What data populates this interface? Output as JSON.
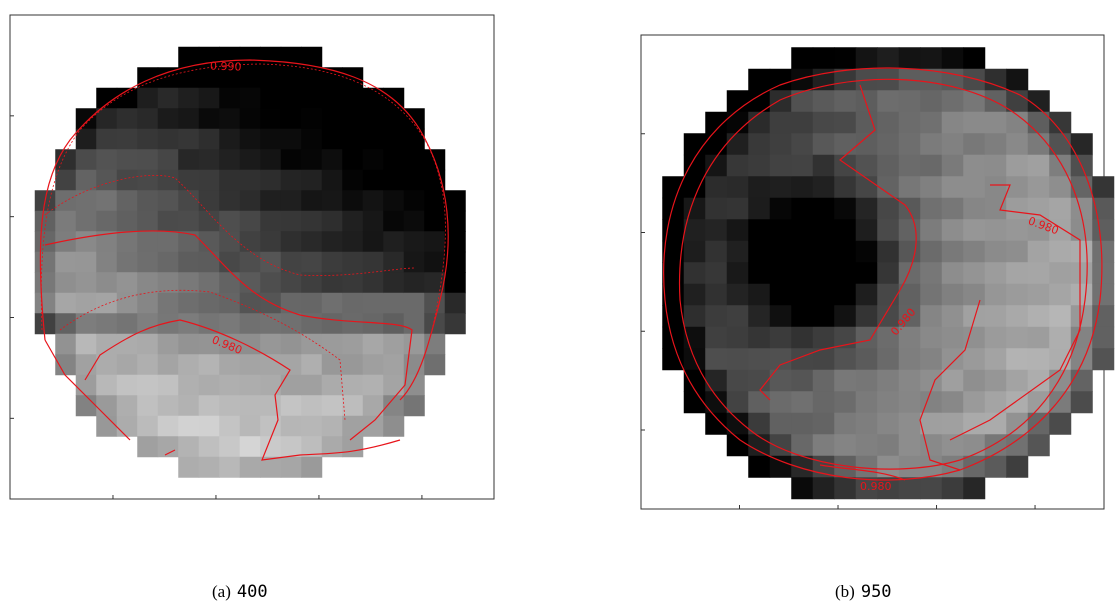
{
  "panels": [
    {
      "caption_label": "(a)",
      "caption_value": "400",
      "contour_labels": [
        "0.990",
        "0.980"
      ]
    },
    {
      "caption_label": "(b)",
      "caption_value": "950",
      "contour_labels": [
        "0.980",
        "0.980",
        "0.980"
      ]
    }
  ]
}
